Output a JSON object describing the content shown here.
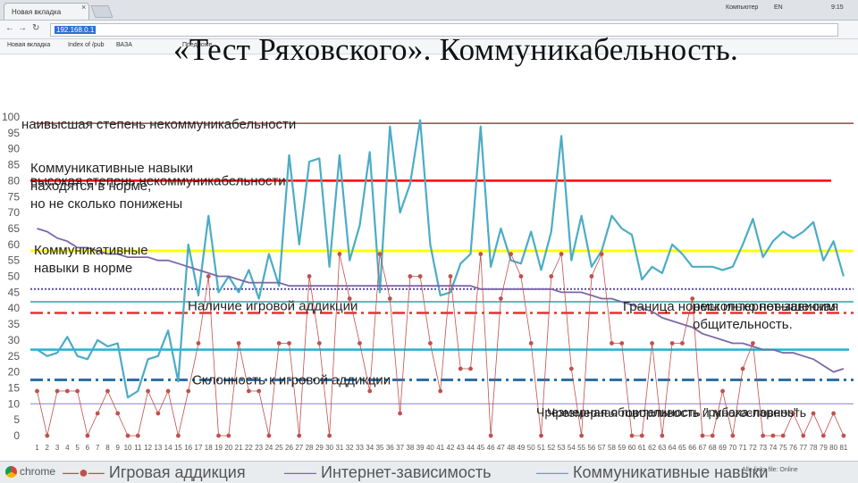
{
  "browser": {
    "tab_title": "Новая вкладка",
    "tab_close": "×",
    "address": "192.168.0.1",
    "bookmarks": [
      "Новая вкладка",
      "Index of /pub",
      "ВАЗА",
      "Предложе..."
    ],
    "user_label": "Компьютер",
    "lang": "EN",
    "clock": "9:15"
  },
  "slide_title": "«Тест Ряховского». Коммуникабельность.",
  "taskbar": {
    "app": "chrome",
    "right_text": "Alle links file: Online"
  },
  "colors": {
    "internet": "#7b67a8",
    "communication": "#4bacc6",
    "gaming": "#c0504d",
    "dark_red": "#8b1c1c",
    "red": "#ff0000",
    "yellow": "#ffff00",
    "purple_dotted": "#5c4b9a",
    "teal": "#2aa6a0",
    "red_dashdot": "#e83030",
    "cyan": "#1fb4d6",
    "blue_dashdot": "#2e6fa8",
    "lavender": "#9b8ed0"
  },
  "chart_data": {
    "type": "line",
    "title": "«Тест Ряховского». Коммуникабельность.",
    "xlabel": "",
    "ylabel": "",
    "ylim": [
      0,
      100
    ],
    "y_ticks": [
      0,
      5,
      10,
      15,
      20,
      25,
      30,
      35,
      40,
      45,
      50,
      55,
      60,
      65,
      70,
      75,
      80,
      85,
      90,
      95,
      100
    ],
    "x": [
      1,
      2,
      3,
      4,
      5,
      6,
      7,
      8,
      9,
      10,
      11,
      12,
      13,
      14,
      15,
      16,
      17,
      18,
      19,
      20,
      21,
      22,
      23,
      24,
      25,
      26,
      27,
      28,
      29,
      30,
      31,
      32,
      33,
      34,
      35,
      36,
      37,
      38,
      39,
      40,
      41,
      42,
      43,
      44,
      45,
      46,
      47,
      48,
      49,
      50,
      51,
      52,
      53,
      54,
      55,
      56,
      57,
      58,
      59,
      60,
      61,
      62,
      63,
      64,
      65,
      66,
      67,
      68,
      69,
      70,
      71,
      72,
      73,
      74,
      75,
      76,
      77,
      78,
      79,
      80,
      81
    ],
    "grid": false,
    "series": [
      {
        "name": "Игровая аддикция",
        "values": [
          14,
          0,
          14,
          14,
          14,
          0,
          7,
          14,
          7,
          0,
          0,
          14,
          7,
          14,
          0,
          14,
          29,
          50,
          0,
          0,
          29,
          14,
          14,
          0,
          29,
          29,
          0,
          50,
          29,
          0,
          57,
          43,
          29,
          14,
          57,
          43,
          7,
          50,
          50,
          29,
          14,
          50,
          21,
          21,
          57,
          0,
          43,
          57,
          50,
          29,
          0,
          50,
          57,
          21,
          0,
          50,
          57,
          29,
          29,
          0,
          0,
          29,
          0,
          29,
          29,
          43,
          0,
          0,
          14,
          0,
          21,
          29,
          0,
          0,
          0,
          7,
          0,
          7,
          0,
          7,
          0
        ]
      },
      {
        "name": "Интернет-зависимость",
        "values": [
          65,
          64,
          62,
          61,
          59,
          59,
          58,
          57,
          57,
          56,
          56,
          56,
          55,
          55,
          54,
          53,
          52,
          51,
          50,
          50,
          49,
          48,
          48,
          48,
          48,
          47,
          47,
          47,
          47,
          47,
          47,
          47,
          47,
          47,
          47,
          47,
          47,
          47,
          47,
          47,
          47,
          47,
          47,
          47,
          46,
          46,
          46,
          46,
          46,
          46,
          46,
          46,
          45,
          45,
          45,
          44,
          43,
          43,
          42,
          41,
          40,
          39,
          37,
          36,
          35,
          34,
          32,
          31,
          30,
          29,
          29,
          28,
          27,
          27,
          26,
          26,
          25,
          24,
          22,
          20,
          21
        ]
      },
      {
        "name": "Коммуникативные навыки",
        "values": [
          27,
          25,
          26,
          31,
          25,
          24,
          30,
          28,
          29,
          12,
          14,
          24,
          25,
          33,
          17,
          60,
          44,
          69,
          45,
          50,
          45,
          52,
          43,
          57,
          47,
          88,
          60,
          86,
          87,
          53,
          88,
          55,
          66,
          89,
          45,
          97,
          70,
          79,
          99,
          60,
          44,
          45,
          54,
          57,
          97,
          53,
          65,
          55,
          54,
          64,
          52,
          64,
          94,
          55,
          69,
          53,
          58,
          69,
          65,
          63,
          49,
          53,
          51,
          60,
          57,
          53,
          53,
          53,
          52,
          53,
          60,
          68,
          56,
          61,
          64,
          62,
          64,
          67,
          55,
          61,
          50
        ]
      }
    ],
    "reference_lines": [
      {
        "y": 98,
        "label": "наивысшая степень некоммуникабельности",
        "style": "solid",
        "color": "#8b1c1c"
      },
      {
        "y": 80,
        "label": "высокая степень некоммуникабельности",
        "style": "solid",
        "color": "#ff0000"
      },
      {
        "y": 58,
        "label": "Коммуникативные навыки находятся в норме, но не сколько понижены",
        "style": "solid",
        "color": "#ffff00"
      },
      {
        "y": 46,
        "label": "Коммуникативные навыки в норме",
        "style": "dotted",
        "color": "#5c4b9a"
      },
      {
        "y": 42,
        "label": "Граница нормы интернет-зависим",
        "style": "solid",
        "color": "#2aa6a0"
      },
      {
        "y": 38.5,
        "label": "Наличие игровой аддикции",
        "style": "dashdot",
        "color": "#e83030"
      },
      {
        "y": 27,
        "label": "несколько повышенная общительность.",
        "style": "solid",
        "color": "#1fb4d6"
      },
      {
        "y": 17.5,
        "label": "Склонность к игровой аддикции",
        "style": "dashdot",
        "color": "#2e6fa8"
      },
      {
        "y": 10,
        "label": "Чрезмерная общительность \"рубаха-парень\"",
        "style": "solid",
        "color": "#9b8ed0"
      }
    ],
    "annotations": [
      "Чрезмерная говорливость и многословность"
    ],
    "legend": {
      "placement": "bottom",
      "items": [
        "Игровая аддикция",
        "Интернет-зависимость",
        "Коммуникативные навыки"
      ]
    }
  }
}
